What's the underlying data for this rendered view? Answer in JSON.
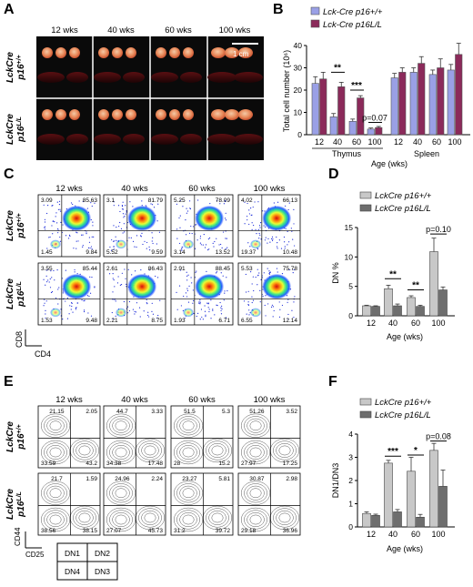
{
  "panels": {
    "A": {
      "letter": "A",
      "time_labels": [
        "12 wks",
        "40 wks",
        "60 wks",
        "100 wks"
      ],
      "row_labels": [
        [
          "LckCre",
          "p16+/+"
        ],
        [
          "LckCre",
          "p16L/L"
        ]
      ],
      "scale_bar": "1 cm"
    },
    "B": {
      "letter": "B"
    },
    "C": {
      "letter": "C",
      "time_labels": [
        "12 wks",
        "40 wks",
        "60 wks",
        "100 wks"
      ],
      "row_labels": [
        [
          "LckCre",
          "p16+/+"
        ],
        [
          "LckCre",
          "p16L/L"
        ]
      ],
      "x_axis": "CD4",
      "y_axis": "CD8",
      "quadrants": [
        [
          {
            "ul": "3.09",
            "ur": "85.63",
            "ll": "1.45",
            "lr": "9.84"
          },
          {
            "ul": "3.1",
            "ur": "81.79",
            "ll": "5.52",
            "lr": "9.59"
          },
          {
            "ul": "5.25",
            "ur": "78.09",
            "ll": "3.14",
            "lr": "13.52"
          },
          {
            "ul": "4.02",
            "ur": "66.13",
            "ll": "19.37",
            "lr": "10.48"
          }
        ],
        [
          {
            "ul": "3.55",
            "ur": "85.44",
            "ll": "1.53",
            "lr": "9.48"
          },
          {
            "ul": "2.61",
            "ur": "86.43",
            "ll": "2.21",
            "lr": "8.75"
          },
          {
            "ul": "2.91",
            "ur": "88.45",
            "ll": "1.93",
            "lr": "6.71"
          },
          {
            "ul": "5.53",
            "ur": "75.78",
            "ll": "6.55",
            "lr": "12.14"
          }
        ]
      ]
    },
    "D": {
      "letter": "D"
    },
    "E": {
      "letter": "E",
      "time_labels": [
        "12 wks",
        "40 wks",
        "60 wks",
        "100 wks"
      ],
      "row_labels": [
        [
          "LckCre",
          "p16+/+"
        ],
        [
          "LckCre",
          "p16L/L"
        ]
      ],
      "x_axis": "CD25",
      "y_axis": "CD44",
      "quadrants": [
        [
          {
            "ul": "21.15",
            "ur": "2.05",
            "ll": "33.59",
            "lr": "43.2"
          },
          {
            "ul": "44.7",
            "ur": "3.33",
            "ll": "34.38",
            "lr": "17.48"
          },
          {
            "ul": "51.5",
            "ur": "5.3",
            "ll": "28",
            "lr": "15.2"
          },
          {
            "ul": "51.26",
            "ur": "3.52",
            "ll": "27.97",
            "lr": "17.25"
          }
        ],
        [
          {
            "ul": "21.7",
            "ur": "1.59",
            "ll": "38.56",
            "lr": "38.15"
          },
          {
            "ul": "24.96",
            "ur": "2.24",
            "ll": "27.07",
            "lr": "45.73"
          },
          {
            "ul": "23.27",
            "ur": "5.81",
            "ll": "31.2",
            "lr": "39.72"
          },
          {
            "ul": "30.87",
            "ur": "2.98",
            "ll": "29.18",
            "lr": "36.96"
          }
        ]
      ],
      "dn_key": [
        "DN1",
        "DN2",
        "DN4",
        "DN3"
      ]
    },
    "F": {
      "letter": "F"
    }
  },
  "colors": {
    "p16_wt_B": "#9aa0e6",
    "p16_ll_B": "#8b2a5a",
    "p16_wt_DF": "#c8c8c8",
    "p16_ll_DF": "#6e6e6e"
  },
  "chart_data": [
    {
      "id": "B",
      "type": "bar",
      "categories": [
        "12",
        "40",
        "60",
        "100",
        "12",
        "40",
        "60",
        "100"
      ],
      "groups": [
        "Thymus",
        "Spleen"
      ],
      "series": [
        {
          "name": "Lck-Cre p16+/+",
          "values": [
            23,
            8,
            6,
            2.5,
            25.5,
            28,
            27,
            29
          ],
          "errors": [
            3,
            1.5,
            1,
            0.5,
            2,
            2,
            2,
            2.5
          ]
        },
        {
          "name": "Lck-Cre p16L/L",
          "values": [
            25,
            21.5,
            16.5,
            3.2,
            28,
            32,
            30,
            36
          ],
          "errors": [
            3,
            2,
            1,
            0.5,
            2,
            3,
            4,
            5
          ]
        }
      ],
      "ylabel": "Total cell number (10⁶)",
      "xlabel": "Age (wks)",
      "ylim": [
        0,
        40
      ],
      "yticks": [
        "0",
        "10",
        "20",
        "30",
        "40"
      ],
      "annotations": [
        "**",
        "***",
        "p=0.07"
      ]
    },
    {
      "id": "D",
      "type": "bar",
      "categories": [
        "12",
        "40",
        "60",
        "100"
      ],
      "series": [
        {
          "name": "LckCre p16+/+",
          "values": [
            1.7,
            4.6,
            3.1,
            10.9
          ],
          "errors": [
            0.1,
            0.6,
            0.3,
            2.3
          ]
        },
        {
          "name": "LckCre p16L/L",
          "values": [
            1.6,
            1.7,
            1.6,
            4.4
          ],
          "errors": [
            0.1,
            0.3,
            0.2,
            0.5
          ]
        }
      ],
      "ylabel": "DN %",
      "xlabel": "Age (wks)",
      "ylim": [
        0,
        15
      ],
      "yticks": [
        "0",
        "5",
        "10",
        "15"
      ],
      "annotations": [
        "**",
        "**",
        "p=0.10"
      ]
    },
    {
      "id": "F",
      "type": "bar",
      "categories": [
        "12",
        "40",
        "60",
        "100"
      ],
      "series": [
        {
          "name": "LckCre p16+/+",
          "values": [
            0.58,
            2.75,
            2.4,
            3.3
          ],
          "errors": [
            0.07,
            0.12,
            0.6,
            0.3
          ]
        },
        {
          "name": "LckCre p16L/L",
          "values": [
            0.5,
            0.65,
            0.42,
            1.75
          ],
          "errors": [
            0.05,
            0.1,
            0.12,
            0.7
          ]
        }
      ],
      "ylabel": "DN1/DN3",
      "xlabel": "Age (wks)",
      "ylim": [
        0,
        4
      ],
      "yticks": [
        "0",
        "1",
        "2",
        "3",
        "4"
      ],
      "annotations": [
        "***",
        "*",
        "p=0.08"
      ]
    }
  ]
}
